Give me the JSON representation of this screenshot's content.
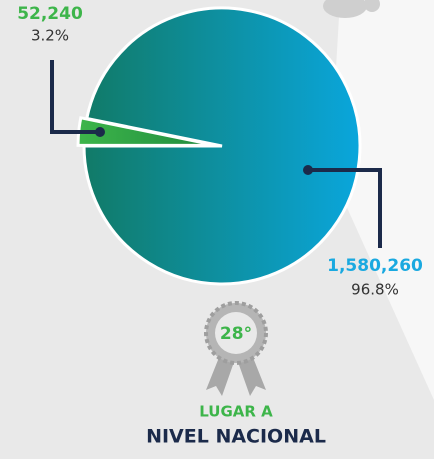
{
  "chart_data": {
    "type": "pie",
    "categories": [
      null,
      null
    ],
    "values": [
      52240,
      1580260
    ],
    "value_labels": [
      "52,240",
      "1,580,260"
    ],
    "shares": [
      3.2,
      96.8
    ],
    "share_labels": [
      "3.2%",
      "96.8%"
    ],
    "colors": [
      "#3db54a",
      "#0aa6dc"
    ],
    "label_colors": [
      "#3db54a",
      "#1aa9e0"
    ],
    "rank_label": "28°",
    "caption": [
      "LUGAR A",
      "NIVEL NACIONAL"
    ]
  }
}
